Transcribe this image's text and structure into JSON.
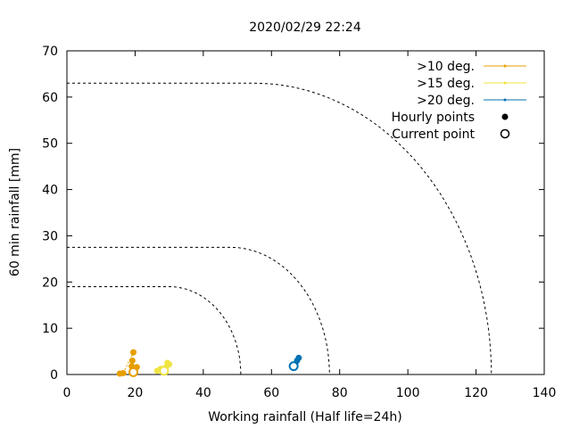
{
  "chart_data": {
    "type": "scatter",
    "title": "2020/02/29 22:24",
    "xlabel": "Working rainfall (Half life=24h)",
    "ylabel": "60 min rainfall [mm]",
    "xlim": [
      0,
      140
    ],
    "ylim": [
      0,
      70
    ],
    "xticks": [
      0,
      20,
      40,
      60,
      80,
      100,
      120,
      140
    ],
    "yticks": [
      0,
      10,
      20,
      30,
      40,
      50,
      60,
      70
    ],
    "grid": false,
    "legend_position": "top-right",
    "threshold_curves": [
      {
        "y_flat": 19,
        "x_flat_end": 30,
        "x_end": 51
      },
      {
        "y_flat": 27.5,
        "x_flat_end": 48,
        "x_end": 77
      },
      {
        "y_flat": 63,
        "x_flat_end": 55,
        "x_end": 124.5
      }
    ],
    "series": [
      {
        "name": ">10 deg.",
        "color": "#e69f00",
        "hourly": [
          [
            15.5,
            0.2
          ],
          [
            16.5,
            0.3
          ],
          [
            19.5,
            4.8
          ],
          [
            19.2,
            3.0
          ],
          [
            19.0,
            1.8
          ],
          [
            20.5,
            1.6
          ]
        ],
        "current": [
          19.5,
          0.5
        ]
      },
      {
        "name": ">15 deg.",
        "color": "#f0e442",
        "hourly": [
          [
            26.5,
            0.8
          ],
          [
            27.5,
            1.2
          ],
          [
            29.5,
            2.5
          ],
          [
            30.0,
            2.2
          ],
          [
            29.0,
            1.5
          ]
        ],
        "current": [
          28.5,
          0.8
        ]
      },
      {
        "name": ">20 deg.",
        "color": "#0072b2",
        "hourly": [
          [
            66.5,
            2.0
          ],
          [
            67.5,
            3.0
          ],
          [
            68.0,
            3.6
          ],
          [
            67.0,
            2.2
          ]
        ],
        "current": [
          66.5,
          1.8
        ]
      }
    ],
    "legend_markers": [
      {
        "label": "Hourly points",
        "marker": "filled-circle"
      },
      {
        "label": "Current point",
        "marker": "open-circle"
      }
    ]
  }
}
